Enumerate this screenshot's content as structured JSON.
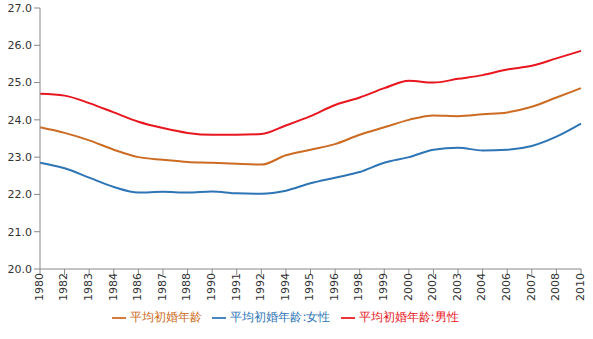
{
  "chart_data": {
    "type": "line",
    "categories": [
      "1980",
      "1982",
      "1983",
      "1984",
      "1986",
      "1987",
      "1988",
      "1990",
      "1991",
      "1992",
      "1994",
      "1995",
      "1996",
      "1998",
      "1999",
      "2000",
      "2002",
      "2003",
      "2004",
      "2006",
      "2007",
      "2008",
      "2010"
    ],
    "series": [
      {
        "name": "平均初婚年龄",
        "color": "#cc6b22",
        "values": [
          23.8,
          23.65,
          23.45,
          23.2,
          23.0,
          22.93,
          22.87,
          22.85,
          22.82,
          22.8,
          23.05,
          23.2,
          23.35,
          23.6,
          23.8,
          24.0,
          24.12,
          24.1,
          24.15,
          24.2,
          24.35,
          24.6,
          24.85
        ]
      },
      {
        "name": "平均初婚年龄:男性",
        "color": "#e8161e",
        "values": [
          24.7,
          24.65,
          24.45,
          24.2,
          23.95,
          23.78,
          23.65,
          23.6,
          23.6,
          23.62,
          23.85,
          24.1,
          24.4,
          24.6,
          24.85,
          25.05,
          25.0,
          25.1,
          25.2,
          25.35,
          25.45,
          25.65,
          25.85
        ]
      },
      {
        "name": "平均初婚年龄:女性",
        "color": "#2e75b6",
        "values": [
          22.85,
          22.7,
          22.45,
          22.2,
          22.05,
          22.07,
          22.05,
          22.08,
          22.03,
          22.02,
          22.1,
          22.3,
          22.45,
          22.6,
          22.85,
          23.0,
          23.2,
          23.25,
          23.18,
          23.2,
          23.3,
          23.55,
          23.9
        ]
      }
    ],
    "ylim": [
      20,
      27
    ],
    "yticks": [
      {
        "value": 20,
        "label": "20.0"
      },
      {
        "value": 21,
        "label": "21.0"
      },
      {
        "value": 22,
        "label": "22.0"
      },
      {
        "value": 23,
        "label": "23.0"
      },
      {
        "value": 24,
        "label": "24.0"
      },
      {
        "value": 25,
        "label": "25.0"
      },
      {
        "value": 26,
        "label": "26.0"
      },
      {
        "value": 27,
        "label": "27.0"
      }
    ],
    "grid": false,
    "legend": "bottom"
  }
}
